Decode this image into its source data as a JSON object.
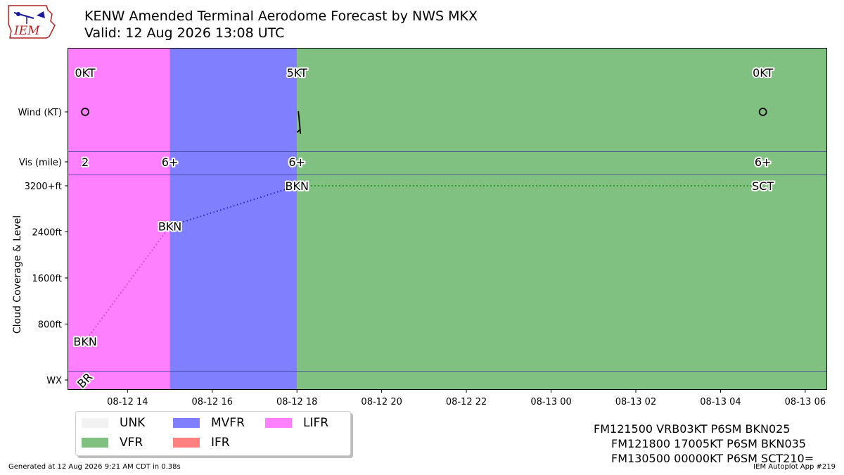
{
  "title": "KENW Amended Terminal Aerodome Forecast by NWS MKX",
  "subtitle": "Valid: 12 Aug 2026 13:08 UTC",
  "logo_text": "IEM",
  "chart_data": {
    "type": "timeline",
    "x_axis": {
      "ticks": [
        "08-12 14",
        "08-12 16",
        "08-12 18",
        "08-12 20",
        "08-12 22",
        "08-13 00",
        "08-13 02",
        "08-13 04",
        "08-13 06"
      ],
      "range_hours_since_0812_12z": [
        0.6,
        18.5
      ]
    },
    "row_labels": {
      "wind": "Wind (KT)",
      "vis": "Vis (mile)",
      "wx": "WX",
      "cloud_axis": "Cloud Coverage & Level"
    },
    "cloud_ticks": [
      "800ft",
      "1600ft",
      "2400ft",
      "3200+ft"
    ],
    "flight_category_bands": [
      {
        "category": "LIFR",
        "start": "08-12 12:36",
        "end": "08-12 15:00",
        "color": "#ff80ff"
      },
      {
        "category": "MVFR",
        "start": "08-12 15:00",
        "end": "08-12 18:00",
        "color": "#8080ff"
      },
      {
        "category": "VFR",
        "start": "08-12 18:00",
        "end": "08-13 06:30",
        "color": "#80c080"
      }
    ],
    "wind": [
      {
        "time": "08-12 13:00",
        "label": "0KT",
        "speed_kt": 0,
        "direction": null
      },
      {
        "time": "08-12 18:00",
        "label": "5KT",
        "speed_kt": 5,
        "direction": 170
      },
      {
        "time": "08-13 05:00",
        "label": "0KT",
        "speed_kt": 0,
        "direction": null
      }
    ],
    "visibility": [
      {
        "time": "08-12 13:00",
        "label": "2"
      },
      {
        "time": "08-12 15:00",
        "label": "6+"
      },
      {
        "time": "08-12 18:00",
        "label": "6+"
      },
      {
        "time": "08-13 05:00",
        "label": "6+"
      }
    ],
    "clouds": [
      {
        "time": "08-12 13:00",
        "cover": "BKN",
        "level_ft": 500,
        "color": "#cc44cc"
      },
      {
        "time": "08-12 15:00",
        "cover": "BKN",
        "level_ft": 2500,
        "color": "#2222cc"
      },
      {
        "time": "08-12 18:00",
        "cover": "BKN",
        "level_ft": 3200,
        "color": "#228822"
      },
      {
        "time": "08-13 05:00",
        "cover": "SCT",
        "level_ft": 3200,
        "color": null
      }
    ],
    "weather": [
      {
        "time": "08-12 13:00",
        "label": "BR"
      }
    ]
  },
  "legend": [
    {
      "label": "UNK",
      "color": "#f2f2f2"
    },
    {
      "label": "MVFR",
      "color": "#8080ff"
    },
    {
      "label": "LIFR",
      "color": "#ff80ff"
    },
    {
      "label": "VFR",
      "color": "#80c080"
    },
    {
      "label": "IFR",
      "color": "#ff8080"
    }
  ],
  "raw_taf": [
    "FM121500 VRB03KT P6SM BKN025",
    "FM121800 17005KT P6SM BKN035",
    "FM130500 00000KT P6SM SCT210="
  ],
  "footer_left": "Generated at 12 Aug 2026 9:21 AM CDT in 0.38s",
  "footer_right": "IEM Autoplot App #219"
}
